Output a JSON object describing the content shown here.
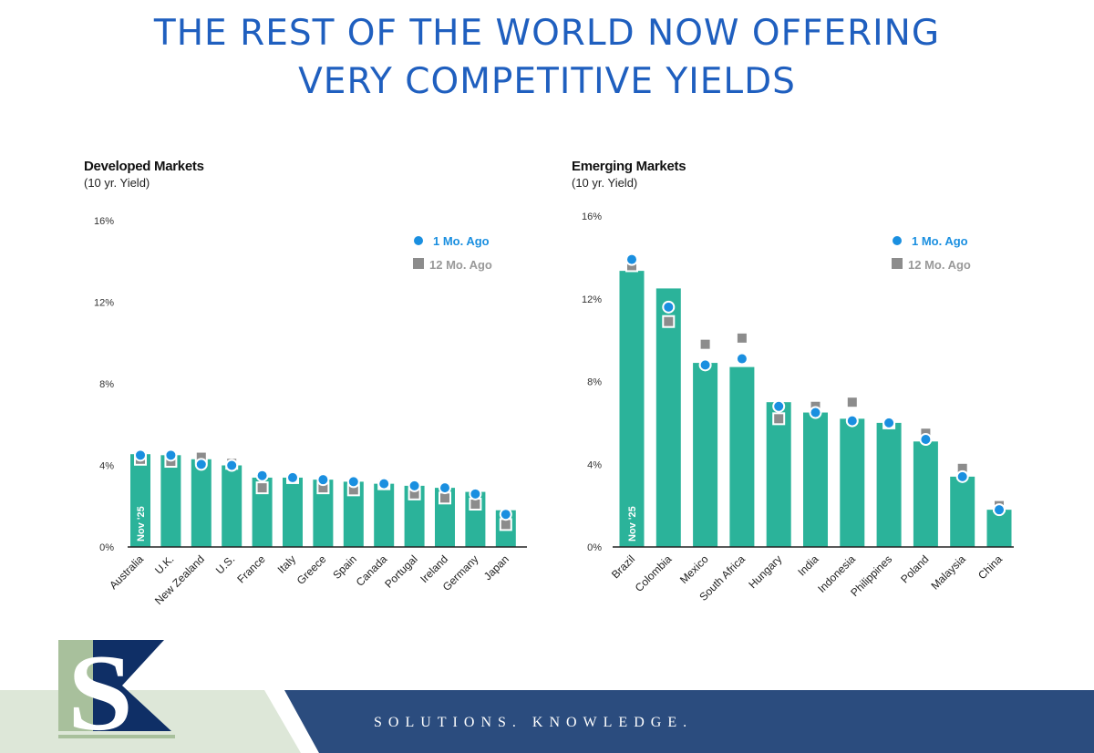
{
  "slide": {
    "title_line1": "THE REST OF THE WORLD NOW OFFERING",
    "title_line2": "VERY COMPETITIVE YIELDS",
    "tagline": "SOLUTIONS.   KNOWLEDGE.",
    "logo_text": "SK",
    "colors": {
      "title": "#1f5fbf",
      "bar": "#2bb39a",
      "one_month": "#1a8fe0",
      "twelve_month": "#8c8c8c",
      "footer": "#2b4c7e",
      "logo_green": "#a8c09c",
      "logo_navy": "#0f2f66"
    }
  },
  "chart_data": [
    {
      "type": "bar",
      "title": "Developed Markets",
      "subtitle": "(10 yr. Yield)",
      "bar_label": "Nov '25",
      "ylim": [
        0,
        16
      ],
      "yticks": [
        "0%",
        "4%",
        "8%",
        "12%",
        "16%"
      ],
      "grid": false,
      "legend_placement": "top-right",
      "categories": [
        "Australia",
        "U.K.",
        "New Zealand",
        "U.S.",
        "France",
        "Italy",
        "Greece",
        "Spain",
        "Canada",
        "Portugal",
        "Ireland",
        "Germany",
        "Japan"
      ],
      "series": [
        {
          "name": "Nov '25",
          "kind": "bar",
          "values": [
            4.55,
            4.5,
            4.3,
            4.0,
            3.4,
            3.4,
            3.3,
            3.2,
            3.1,
            3.0,
            2.9,
            2.7,
            1.8
          ]
        },
        {
          "name": "1 Mo. Ago",
          "kind": "circle",
          "values": [
            4.5,
            4.5,
            4.05,
            4.0,
            3.5,
            3.4,
            3.3,
            3.2,
            3.1,
            3.0,
            2.9,
            2.6,
            1.6
          ]
        },
        {
          "name": "12 Mo. Ago",
          "kind": "square",
          "values": [
            4.3,
            4.2,
            4.4,
            4.1,
            2.9,
            3.4,
            2.9,
            2.8,
            3.1,
            2.6,
            2.4,
            2.1,
            1.1
          ]
        }
      ]
    },
    {
      "type": "bar",
      "title": "Emerging Markets",
      "subtitle": "(10 yr. Yield)",
      "bar_label": "Nov '25",
      "ylim": [
        0,
        16
      ],
      "yticks": [
        "0%",
        "4%",
        "8%",
        "12%",
        "16%"
      ],
      "grid": false,
      "legend_placement": "top-right",
      "categories": [
        "Brazil",
        "Colombia",
        "Mexico",
        "South Africa",
        "Hungary",
        "India",
        "Indonesia",
        "Philippines",
        "Poland",
        "Malaysia",
        "China"
      ],
      "series": [
        {
          "name": "Nov '25",
          "kind": "bar",
          "values": [
            13.35,
            12.5,
            8.9,
            8.7,
            7.0,
            6.5,
            6.2,
            6.0,
            5.1,
            3.4,
            1.8
          ]
        },
        {
          "name": "1 Mo. Ago",
          "kind": "circle",
          "values": [
            13.9,
            11.6,
            8.8,
            9.1,
            6.8,
            6.5,
            6.1,
            6.0,
            5.2,
            3.4,
            1.8
          ]
        },
        {
          "name": "12 Mo. Ago",
          "kind": "square",
          "values": [
            13.6,
            10.9,
            9.8,
            10.1,
            6.2,
            6.8,
            7.0,
            6.0,
            5.5,
            3.8,
            2.0
          ]
        }
      ]
    }
  ]
}
